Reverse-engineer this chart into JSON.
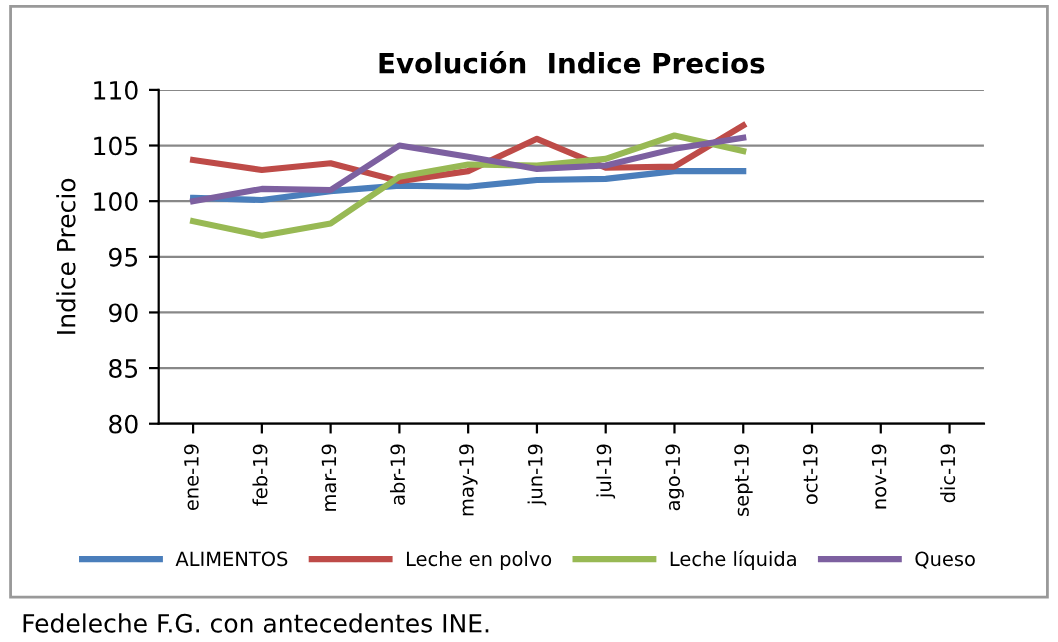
{
  "chart_data": {
    "type": "line",
    "title": "Evolución  Indice Precios",
    "ylabel": "Indice Precio",
    "categories": [
      "ene-19",
      "feb-19",
      "mar-19",
      "abr-19",
      "may-19",
      "jun-19",
      "jul-19",
      "ago-19",
      "sept-19",
      "oct-19",
      "nov-19",
      "dic-19"
    ],
    "series": [
      {
        "name": "ALIMENTOS",
        "color": "#4a7ebb",
        "values": [
          100.3,
          100.1,
          100.9,
          101.4,
          101.3,
          101.9,
          102.0,
          102.7,
          102.7,
          null,
          null,
          null
        ]
      },
      {
        "name": "Leche en polvo",
        "color": "#be4b48",
        "values": [
          103.7,
          102.8,
          103.4,
          101.8,
          102.7,
          105.6,
          103.0,
          103.1,
          106.8,
          null,
          null,
          null
        ]
      },
      {
        "name": "Leche líquida",
        "color": "#98b954",
        "values": [
          98.2,
          96.9,
          98.0,
          102.2,
          103.3,
          103.2,
          103.8,
          105.9,
          104.5,
          null,
          null,
          null
        ]
      },
      {
        "name": "Queso",
        "color": "#7d60a0",
        "values": [
          100.0,
          101.1,
          101.0,
          105.0,
          104.0,
          102.9,
          103.2,
          104.7,
          105.7,
          null,
          null,
          null
        ]
      }
    ],
    "ylim": [
      80,
      110
    ],
    "yticks": [
      80,
      85,
      90,
      95,
      100,
      105,
      110
    ],
    "grid": "y",
    "legend": "bottom",
    "marker": "none",
    "line_style": "solid",
    "annotations": [
      "Fedeleche F.G. con antecedentes INE."
    ]
  }
}
